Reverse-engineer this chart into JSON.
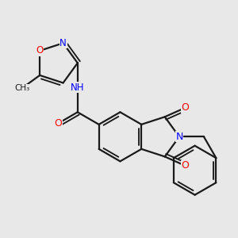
{
  "bg_color": "#e8e8e8",
  "bond_color": "#1a1a1a",
  "bond_width": 1.6,
  "atom_colors": {
    "O": "#ff0000",
    "N": "#0000ff",
    "C": "#1a1a1a"
  },
  "font_size": 8.5,
  "fig_size": [
    3.0,
    3.0
  ],
  "dpi": 100
}
